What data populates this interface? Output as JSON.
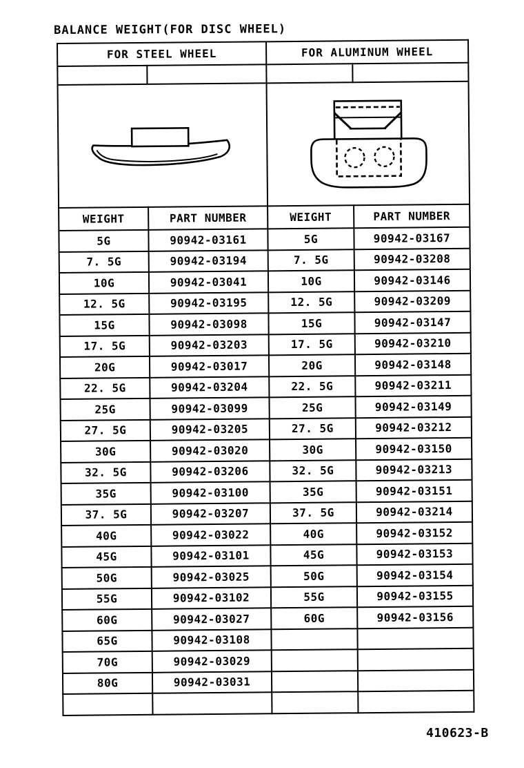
{
  "title": "BALANCE WEIGHT(FOR DISC WHEEL)",
  "footer_code": "410623-B",
  "table": {
    "section_titles": {
      "steel": "FOR STEEL WHEEL",
      "aluminum": "FOR ALUMINUM WHEEL"
    },
    "column_headers": [
      "WEIGHT",
      "PART NUMBER",
      "WEIGHT",
      "PART NUMBER"
    ],
    "rows": [
      [
        "5G",
        "90942-03161",
        "5G",
        "90942-03167"
      ],
      [
        "7. 5G",
        "90942-03194",
        "7. 5G",
        "90942-03208"
      ],
      [
        "10G",
        "90942-03041",
        "10G",
        "90942-03146"
      ],
      [
        "12. 5G",
        "90942-03195",
        "12. 5G",
        "90942-03209"
      ],
      [
        "15G",
        "90942-03098",
        "15G",
        "90942-03147"
      ],
      [
        "17. 5G",
        "90942-03203",
        "17. 5G",
        "90942-03210"
      ],
      [
        "20G",
        "90942-03017",
        "20G",
        "90942-03148"
      ],
      [
        "22. 5G",
        "90942-03204",
        "22. 5G",
        "90942-03211"
      ],
      [
        "25G",
        "90942-03099",
        "25G",
        "90942-03149"
      ],
      [
        "27. 5G",
        "90942-03205",
        "27. 5G",
        "90942-03212"
      ],
      [
        "30G",
        "90942-03020",
        "30G",
        "90942-03150"
      ],
      [
        "32. 5G",
        "90942-03206",
        "32. 5G",
        "90942-03213"
      ],
      [
        "35G",
        "90942-03100",
        "35G",
        "90942-03151"
      ],
      [
        "37. 5G",
        "90942-03207",
        "37. 5G",
        "90942-03214"
      ],
      [
        "40G",
        "90942-03022",
        "40G",
        "90942-03152"
      ],
      [
        "45G",
        "90942-03101",
        "45G",
        "90942-03153"
      ],
      [
        "50G",
        "90942-03025",
        "50G",
        "90942-03154"
      ],
      [
        "55G",
        "90942-03102",
        "55G",
        "90942-03155"
      ],
      [
        "60G",
        "90942-03027",
        "60G",
        "90942-03156"
      ],
      [
        "65G",
        "90942-03108",
        "",
        ""
      ],
      [
        "70G",
        "90942-03029",
        "",
        ""
      ],
      [
        "80G",
        "90942-03031",
        "",
        ""
      ],
      [
        "",
        "",
        "",
        ""
      ]
    ]
  },
  "diagrams": {
    "steel": "clip-on-balance-weight-side-view",
    "aluminum": "stick-on-balance-weight-with-clip-top-view"
  }
}
